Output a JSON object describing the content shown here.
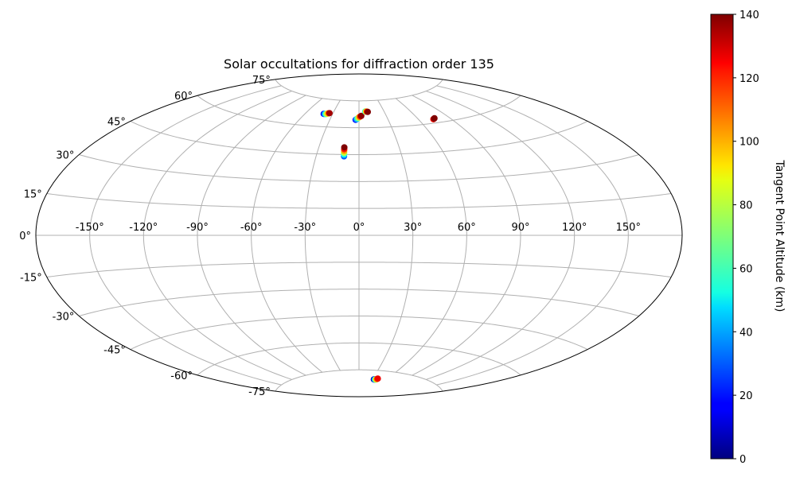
{
  "chart_data": {
    "type": "scatter",
    "title": "Solar occultations for diffraction order 135",
    "projection": "aitoff",
    "grid": true,
    "x_tick_labels": [
      "-150°",
      "-120°",
      "-90°",
      "-60°",
      "-30°",
      "0°",
      "30°",
      "60°",
      "90°",
      "120°",
      "150°"
    ],
    "y_tick_labels": [
      "75°",
      "60°",
      "45°",
      "30°",
      "15°",
      "0°",
      "-15°",
      "-30°",
      "-45°",
      "-60°",
      "-75°"
    ],
    "colorbar": {
      "label": "Tangent Point Altitude (km)",
      "range": [
        0,
        140
      ],
      "ticks": [
        "0",
        "20",
        "40",
        "60",
        "80",
        "100",
        "120",
        "140"
      ],
      "colormap": "jet"
    },
    "series": [
      {
        "lon": [
          -40,
          -39,
          -38,
          -37,
          -36,
          -35,
          -34
        ],
        "lat": [
          67,
          67,
          67,
          67,
          67.3,
          67.5,
          67.6
        ],
        "alt": [
          15,
          30,
          50,
          70,
          90,
          110,
          135
        ]
      },
      {
        "lon": [
          -3.5,
          -2.5,
          -1.5,
          -0.5,
          0.5,
          1.5,
          2.5
        ],
        "lat": [
          64.4,
          64.8,
          65.2,
          65.6,
          66,
          66.3,
          66.6
        ],
        "alt": [
          20,
          40,
          60,
          80,
          100,
          120,
          138
        ]
      },
      {
        "lon": [
          7.5,
          8.5,
          9.5,
          10.5
        ],
        "lat": [
          69,
          69,
          68.9,
          68.8
        ],
        "alt": [
          60,
          90,
          120,
          140
        ]
      },
      {
        "lon": [
          -10.5,
          -10.6,
          -10.7,
          -10.8,
          -10.9,
          -11
        ],
        "lat": [
          44,
          45,
          46,
          47,
          48,
          49
        ],
        "alt": [
          30,
          55,
          80,
          100,
          120,
          140
        ]
      },
      {
        "lon": [
          74,
          75,
          76
        ],
        "lat": [
          62,
          62.2,
          62.4
        ],
        "alt": [
          120,
          135,
          140
        ]
      },
      {
        "lon": [
          34,
          35,
          36,
          37,
          38,
          39,
          40,
          41
        ],
        "lat": [
          -80,
          -80,
          -80,
          -80,
          -80,
          -79.8,
          -79.6,
          -79.4
        ],
        "alt": [
          2,
          10,
          30,
          50,
          70,
          90,
          110,
          125
        ]
      }
    ]
  }
}
